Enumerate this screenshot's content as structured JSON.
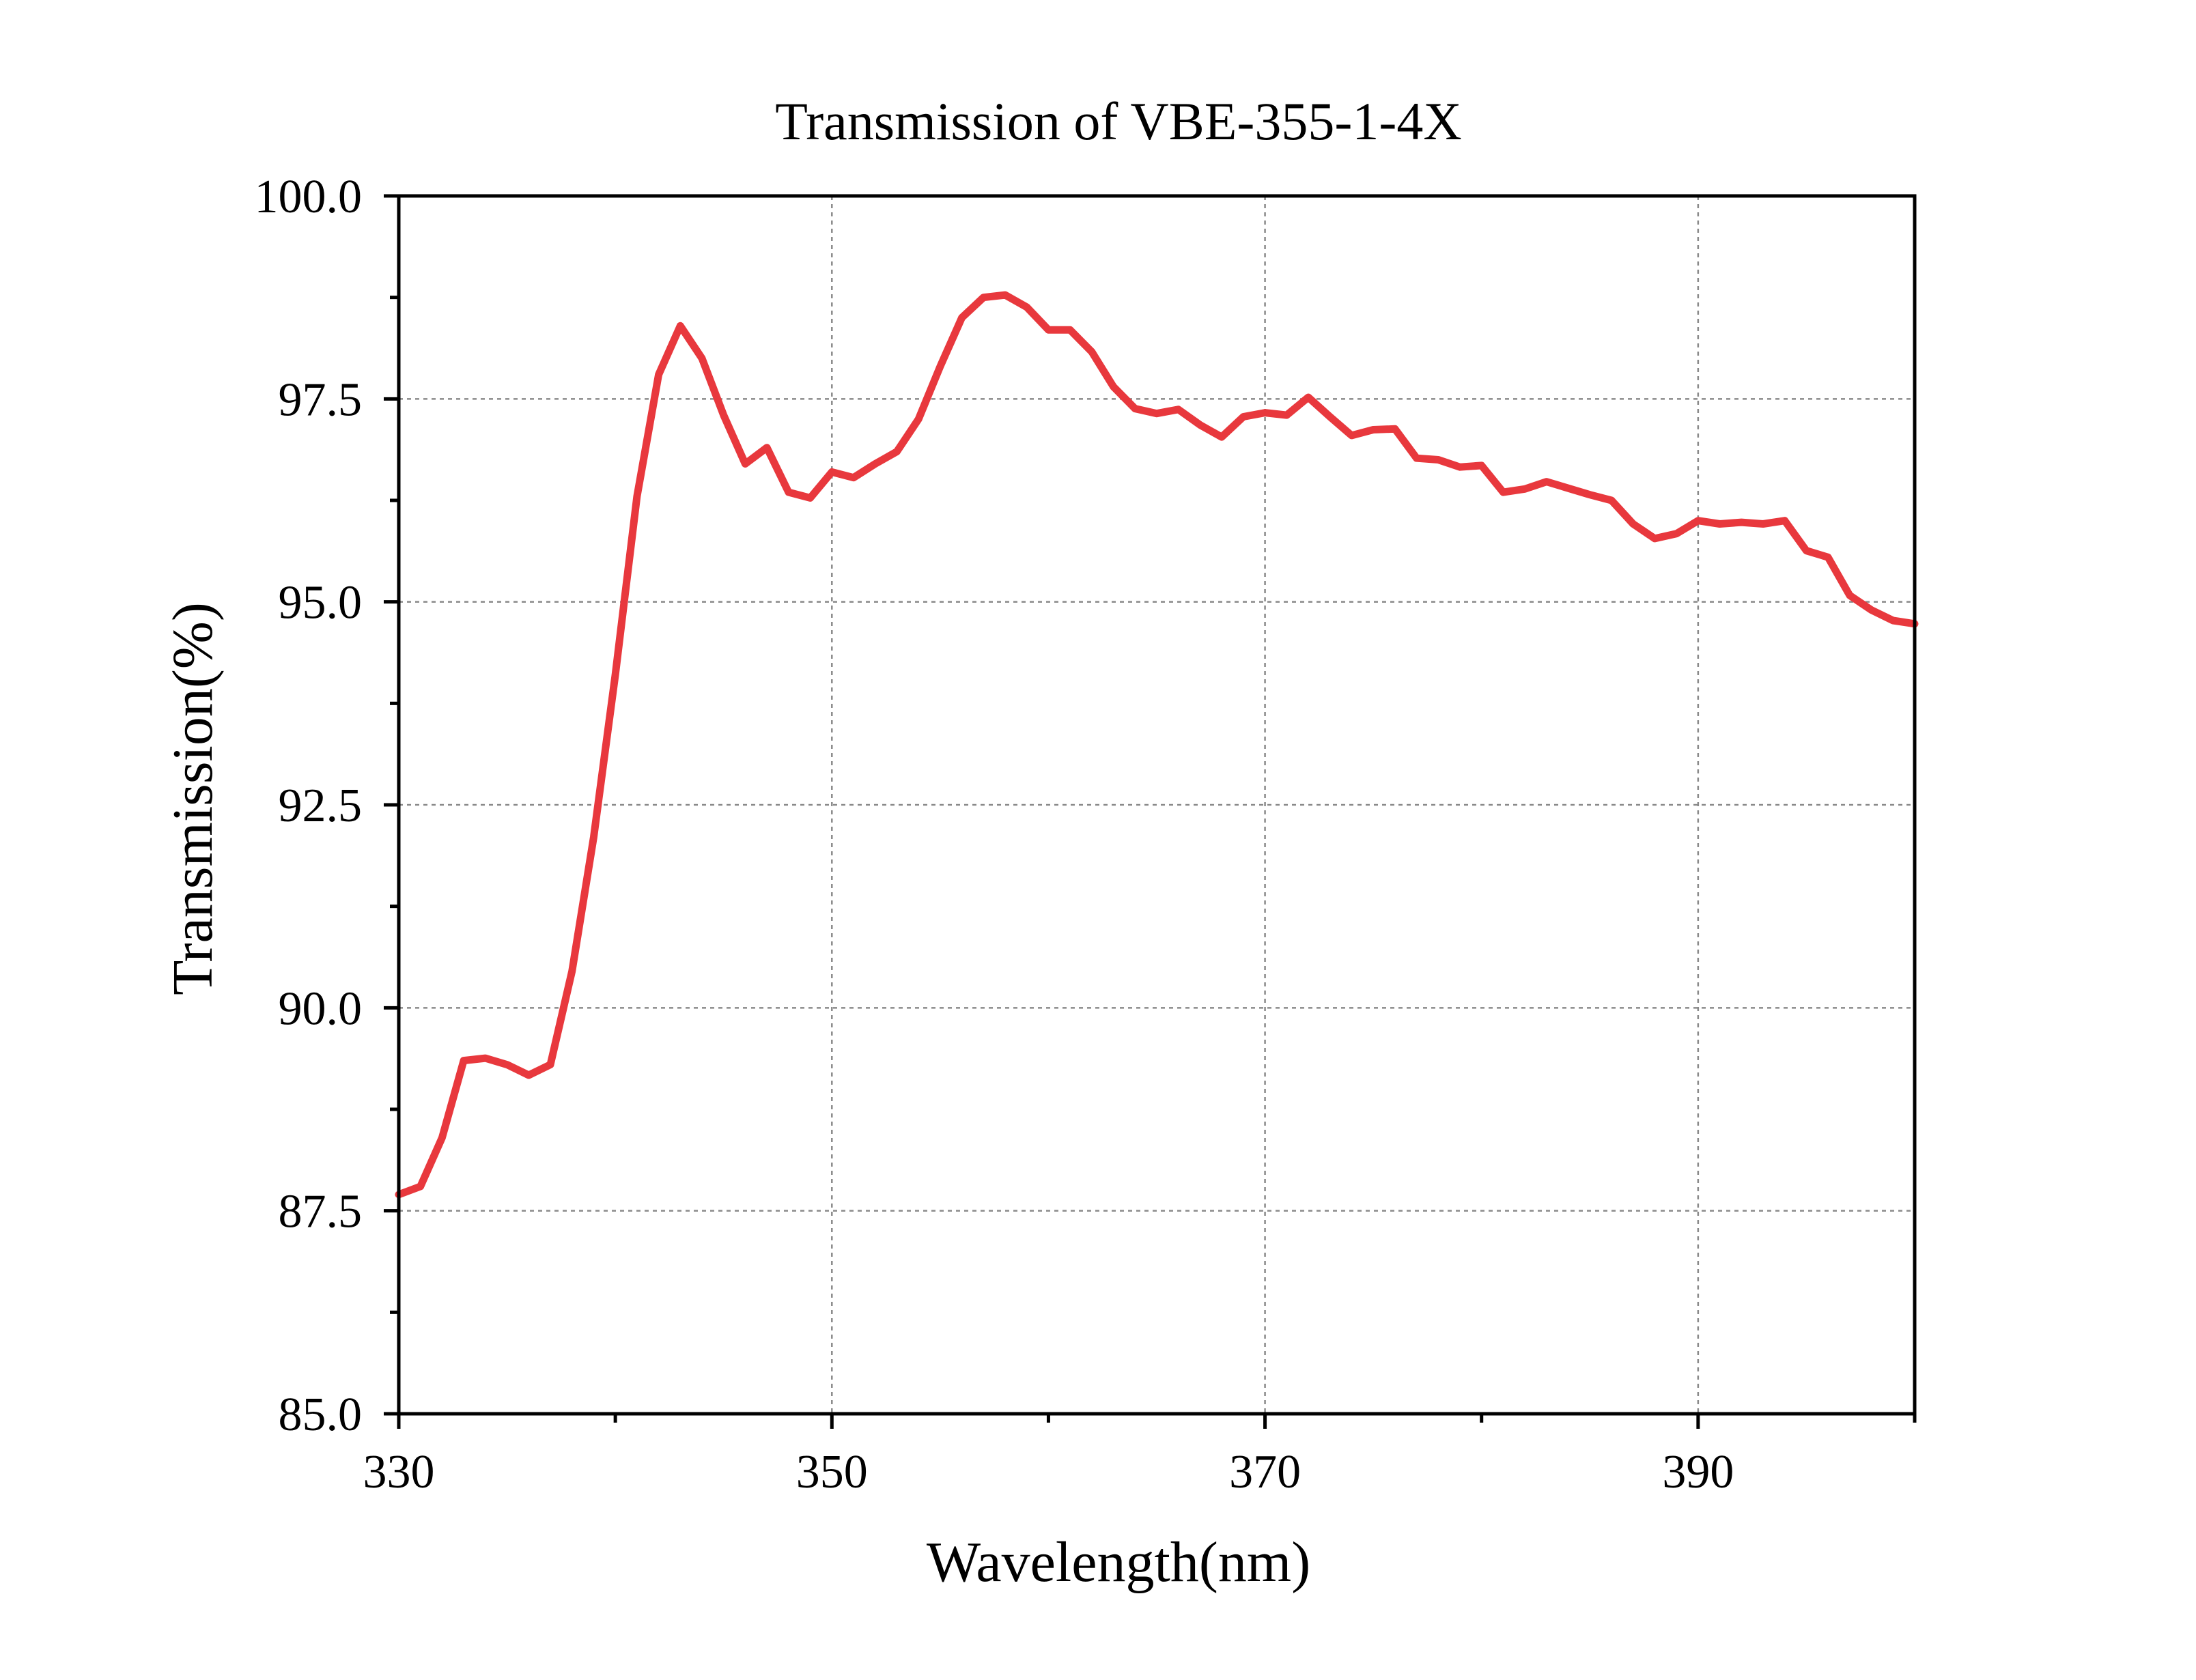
{
  "chart_data": {
    "type": "line",
    "title": "Transmission of VBE-355-1-4X",
    "xlabel": "Wavelength(nm)",
    "ylabel": "Transmission(%)",
    "xlim": [
      330,
      400
    ],
    "ylim": [
      85.0,
      100.0
    ],
    "x_ticks": [
      330,
      350,
      370,
      390
    ],
    "x_minor_ticks": [
      340,
      360,
      380,
      400
    ],
    "y_ticks": [
      85.0,
      87.5,
      90.0,
      92.5,
      95.0,
      97.5,
      100.0
    ],
    "y_tick_labels": [
      "85.0",
      "87.5",
      "90.0",
      "92.5",
      "95.0",
      "97.5",
      "100.0"
    ],
    "y_minor_ticks": [
      86.25,
      88.75,
      91.25,
      93.75,
      96.25,
      98.75
    ],
    "grid": true,
    "legend": "none",
    "series": [
      {
        "color": "#e8383d",
        "x": [
          330,
          331,
          332,
          333,
          334,
          335,
          336,
          337,
          338,
          339,
          340,
          341,
          342,
          343,
          344,
          345,
          346,
          347,
          348,
          349,
          350,
          351,
          352,
          353,
          354,
          355,
          356,
          357,
          358,
          359,
          360,
          361,
          362,
          363,
          364,
          365,
          366,
          367,
          368,
          369,
          370,
          371,
          372,
          373,
          374,
          375,
          376,
          377,
          378,
          379,
          380,
          381,
          382,
          383,
          384,
          385,
          386,
          387,
          388,
          389,
          390,
          391,
          392,
          393,
          394,
          395,
          396,
          397,
          398,
          399,
          400
        ],
        "y": [
          87.7,
          87.8,
          88.4,
          89.35,
          89.38,
          89.3,
          89.17,
          89.3,
          90.45,
          92.1,
          94.1,
          96.3,
          97.8,
          98.4,
          98.0,
          97.3,
          96.7,
          96.9,
          96.35,
          96.28,
          96.6,
          96.53,
          96.7,
          96.85,
          97.25,
          97.9,
          98.5,
          98.75,
          98.78,
          98.63,
          98.35,
          98.35,
          98.08,
          97.65,
          97.38,
          97.32,
          97.37,
          97.18,
          97.03,
          97.28,
          97.33,
          97.3,
          97.52,
          97.28,
          97.05,
          97.12,
          97.13,
          96.77,
          96.75,
          96.66,
          96.68,
          96.35,
          96.39,
          96.48,
          96.4,
          96.32,
          96.25,
          95.96,
          95.78,
          95.84,
          96.0,
          95.96,
          95.98,
          95.96,
          96.0,
          95.63,
          95.55,
          95.08,
          94.9,
          94.77,
          94.73
        ]
      }
    ]
  }
}
